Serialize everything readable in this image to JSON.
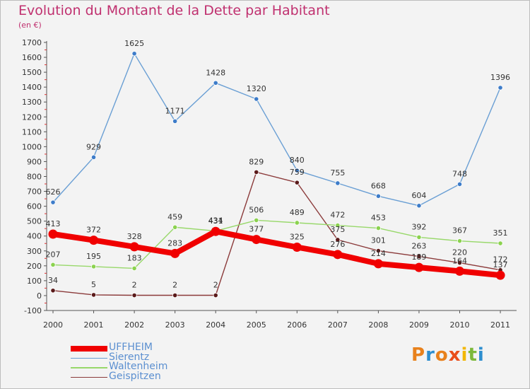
{
  "title": "Evolution du Montant de la Dette par Habitant",
  "unit_label": "(en €)",
  "logo": {
    "text": "Proxiti",
    "colors": [
      "#e8811c",
      "#2e8ecf",
      "#e8811c",
      "#e94e1b",
      "#f2b705",
      "#7cb83a",
      "#2e8ecf"
    ]
  },
  "chart_data": {
    "type": "line",
    "title": "Evolution du Montant de la Dette par Habitant",
    "ylabel": "(en €)",
    "xlabel": "",
    "x": [
      "2000",
      "2001",
      "2002",
      "2003",
      "2004",
      "2005",
      "2006",
      "2007",
      "2008",
      "2009",
      "2010",
      "2011"
    ],
    "ylim": [
      -100,
      1700
    ],
    "yticks": [
      -100,
      0,
      100,
      200,
      300,
      400,
      500,
      600,
      700,
      800,
      900,
      1000,
      1100,
      1200,
      1300,
      1400,
      1500,
      1600,
      1700
    ],
    "grid": false,
    "legend_position": "bottom-left",
    "series": [
      {
        "name": "UFFHEIM",
        "color": "#f00000",
        "values": [
          413,
          372,
          328,
          283,
          431,
          377,
          325,
          276,
          214,
          189,
          164,
          137
        ]
      },
      {
        "name": "Sierentz",
        "color": "#6a9fd4",
        "values": [
          626,
          929,
          1625,
          1171,
          1428,
          1320,
          840,
          755,
          668,
          604,
          748,
          1396
        ]
      },
      {
        "name": "Waltenheim",
        "color": "#98d86a",
        "values": [
          207,
          195,
          183,
          459,
          434,
          506,
          489,
          472,
          453,
          392,
          367,
          351
        ]
      },
      {
        "name": "Geispitzen",
        "color": "#8b3a3a",
        "values": [
          34,
          5,
          2,
          2,
          2,
          829,
          759,
          375,
          301,
          263,
          220,
          172
        ]
      }
    ]
  }
}
